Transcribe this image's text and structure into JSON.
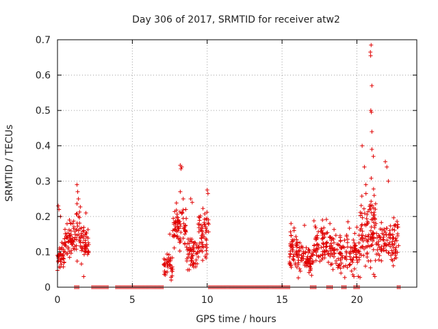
{
  "chart_data": {
    "type": "scatter",
    "title": "Day 306 of 2017, SRMTID for receiver atw2",
    "xlabel": "GPS time / hours",
    "ylabel": "SRMTID / TECUs",
    "xlim": [
      0,
      24
    ],
    "ylim": [
      0,
      0.7
    ],
    "xticks": [
      0,
      5,
      10,
      15,
      20
    ],
    "yticks": [
      0,
      0.1,
      0.2,
      0.3,
      0.4,
      0.5,
      0.6,
      0.7
    ],
    "grid": true,
    "marker": "+",
    "colors": {
      "points": "#e00000",
      "grid": "#a0a0a0",
      "axis": "#000000"
    },
    "series": [
      {
        "name": "SRMTID",
        "segments": [
          {
            "t0": 0.0,
            "t1": 0.45,
            "base": 0.09,
            "spread": 0.04,
            "n": 40,
            "spikes": [
              [
                0.05,
                0.23
              ],
              [
                0.1,
                0.22
              ],
              [
                0.2,
                0.2
              ]
            ]
          },
          {
            "t0": 0.45,
            "t1": 1.0,
            "base": 0.12,
            "spread": 0.05,
            "n": 45,
            "spikes": [
              [
                0.8,
                0.19
              ],
              [
                0.9,
                0.18
              ]
            ]
          },
          {
            "t0": 1.0,
            "t1": 1.6,
            "base": 0.15,
            "spread": 0.07,
            "n": 45,
            "spikes": [
              [
                1.3,
                0.29
              ],
              [
                1.35,
                0.27
              ],
              [
                1.4,
                0.25
              ]
            ]
          },
          {
            "t0": 1.6,
            "t1": 2.15,
            "base": 0.12,
            "spread": 0.06,
            "n": 40,
            "spikes": [
              [
                1.9,
                0.21
              ],
              [
                1.75,
                0.03
              ]
            ]
          },
          {
            "t0": 7.1,
            "t1": 7.7,
            "base": 0.06,
            "spread": 0.03,
            "n": 40,
            "spikes": [
              [
                7.5,
                0.15
              ]
            ]
          },
          {
            "t0": 7.7,
            "t1": 8.6,
            "base": 0.17,
            "spread": 0.06,
            "n": 70,
            "spikes": [
              [
                8.2,
                0.345
              ],
              [
                8.25,
                0.335
              ],
              [
                8.3,
                0.34
              ],
              [
                8.2,
                0.27
              ],
              [
                8.4,
                0.25
              ]
            ]
          },
          {
            "t0": 8.6,
            "t1": 9.4,
            "base": 0.1,
            "spread": 0.05,
            "n": 60,
            "spikes": [
              [
                8.9,
                0.25
              ],
              [
                9.0,
                0.24
              ]
            ]
          },
          {
            "t0": 9.4,
            "t1": 10.15,
            "base": 0.15,
            "spread": 0.06,
            "n": 60,
            "spikes": [
              [
                10.0,
                0.275
              ],
              [
                10.05,
                0.265
              ]
            ]
          },
          {
            "t0": 15.5,
            "t1": 16.2,
            "base": 0.1,
            "spread": 0.05,
            "n": 60,
            "spikes": [
              [
                15.6,
                0.18
              ],
              [
                15.8,
                0.16
              ]
            ]
          },
          {
            "t0": 16.2,
            "t1": 17.1,
            "base": 0.08,
            "spread": 0.04,
            "n": 60,
            "spikes": [
              [
                16.5,
                0.175
              ],
              [
                16.9,
                0.05
              ]
            ]
          },
          {
            "t0": 17.1,
            "t1": 18.6,
            "base": 0.12,
            "spread": 0.05,
            "n": 100,
            "spikes": [
              [
                17.7,
                0.19
              ],
              [
                18.2,
                0.18
              ],
              [
                18.4,
                0.05
              ]
            ]
          },
          {
            "t0": 18.6,
            "t1": 20.2,
            "base": 0.1,
            "spread": 0.05,
            "n": 100,
            "spikes": [
              [
                19.4,
                0.185
              ],
              [
                19.8,
                0.03
              ],
              [
                20.0,
                0.17
              ]
            ]
          },
          {
            "t0": 20.2,
            "t1": 20.8,
            "base": 0.15,
            "spread": 0.09,
            "n": 50,
            "spikes": [
              [
                20.35,
                0.4
              ],
              [
                20.5,
                0.34
              ],
              [
                20.6,
                0.29
              ]
            ]
          },
          {
            "t0": 20.8,
            "t1": 21.3,
            "base": 0.18,
            "spread": 0.1,
            "n": 50,
            "spikes": [
              [
                20.95,
                0.685
              ],
              [
                20.9,
                0.665
              ],
              [
                20.92,
                0.655
              ],
              [
                21.0,
                0.57
              ],
              [
                20.93,
                0.5
              ],
              [
                20.97,
                0.495
              ],
              [
                21.0,
                0.44
              ],
              [
                21.0,
                0.39
              ],
              [
                21.1,
                0.37
              ]
            ]
          },
          {
            "t0": 21.3,
            "t1": 22.8,
            "base": 0.13,
            "spread": 0.06,
            "n": 100,
            "spikes": [
              [
                21.9,
                0.355
              ],
              [
                22.0,
                0.34
              ],
              [
                22.1,
                0.3
              ],
              [
                21.2,
                0.03
              ],
              [
                22.7,
                0.17
              ]
            ]
          }
        ],
        "zero_ranges": [
          [
            1.15,
            1.5
          ],
          [
            2.3,
            3.4
          ],
          [
            3.9,
            7.1
          ],
          [
            10.1,
            15.5
          ],
          [
            16.9,
            17.3
          ],
          [
            18.0,
            18.4
          ],
          [
            19.0,
            19.3
          ],
          [
            19.8,
            20.2
          ],
          [
            22.7,
            22.9
          ]
        ]
      }
    ]
  }
}
